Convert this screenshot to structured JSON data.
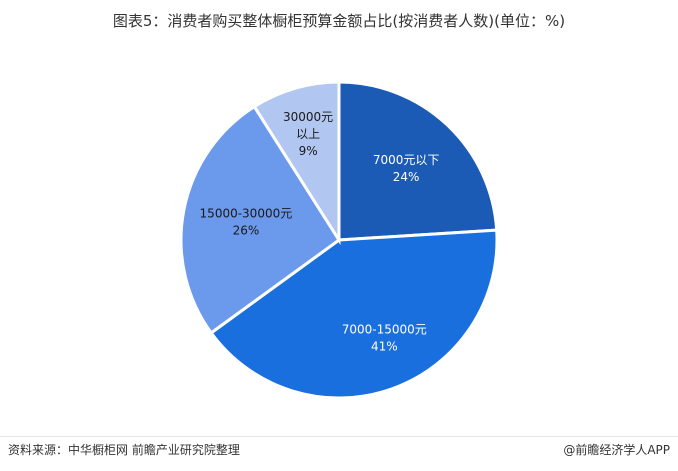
{
  "chart_data": {
    "type": "pie",
    "title": "图表5：消费者购买整体橱柜预算金额占比(按消费者人数)(单位：%)",
    "categories": [
      "7000元以下",
      "7000-15000元",
      "15000-30000元",
      "30000元以上"
    ],
    "label_lines": [
      [
        "7000元以下"
      ],
      [
        "7000-15000元"
      ],
      [
        "15000-30000元"
      ],
      [
        "30000元",
        "以上"
      ]
    ],
    "values": [
      24,
      41,
      26,
      9
    ],
    "value_labels": [
      "24%",
      "41%",
      "26%",
      "9%"
    ],
    "colors": [
      "#1c5bb5",
      "#1a6fde",
      "#6b99ec",
      "#b1c6f1"
    ],
    "unit": "%"
  },
  "footer": {
    "source": "资料来源：中华橱柜网 前瞻产业研究院整理",
    "brand": "@前瞻经济学人APP"
  }
}
